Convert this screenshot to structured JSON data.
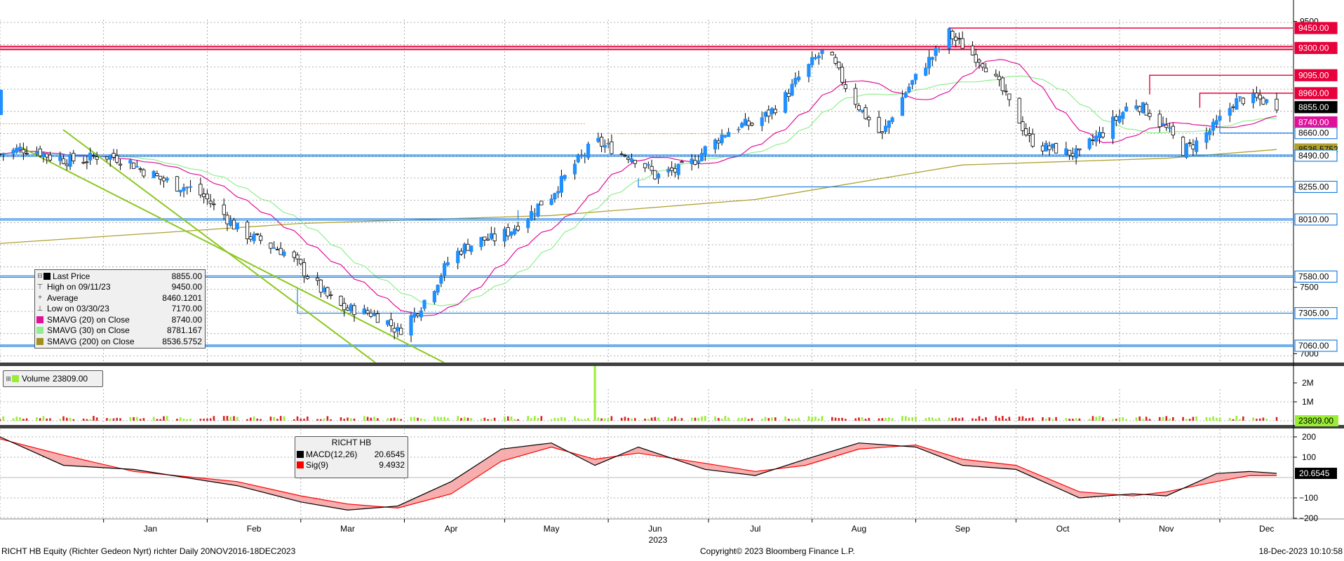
{
  "chart_data": [
    {
      "type": "candlestick",
      "name": "price",
      "y_axis_ticks": [
        9500,
        7500,
        7000
      ],
      "price_labels": [
        {
          "value": 9450,
          "text": "9450.00",
          "style": "red"
        },
        {
          "value": 9300,
          "text": "9300.00",
          "style": "red"
        },
        {
          "value": 9095,
          "text": "9095.00",
          "style": "red"
        },
        {
          "value": 8960,
          "text": "8960.00",
          "style": "red"
        },
        {
          "value": 8855,
          "text": "8855.00",
          "style": "black"
        },
        {
          "value": 8740,
          "text": "8740.00",
          "style": "magenta"
        },
        {
          "value": 8660,
          "text": "8660.00",
          "style": "blue"
        },
        {
          "value": 8536.5752,
          "text": "8536.5752",
          "style": "olive"
        },
        {
          "value": 8490,
          "text": "8490.00",
          "style": "blue"
        },
        {
          "value": 8255,
          "text": "8255.00",
          "style": "blue"
        },
        {
          "value": 8010,
          "text": "8010.00",
          "style": "blue"
        },
        {
          "value": 7580,
          "text": "7580.00",
          "style": "blue"
        },
        {
          "value": 7305,
          "text": "7305.00",
          "style": "blue"
        },
        {
          "value": 7060,
          "text": "7060.00",
          "style": "blue"
        }
      ],
      "legend": [
        {
          "symbol": "black-square",
          "label": "Last Price",
          "value": "8855.00"
        },
        {
          "symbol": "high",
          "label": "High on 09/11/23",
          "value": "9450.00"
        },
        {
          "symbol": "average",
          "label": "Average",
          "value": "8460.1201"
        },
        {
          "symbol": "low",
          "label": "Low on 03/30/23",
          "value": "7170.00"
        },
        {
          "symbol": "magenta-square",
          "label": "SMAVG (20)  on Close",
          "value": "8740.00"
        },
        {
          "symbol": "lightgreen-square",
          "label": "SMAVG (30)  on Close",
          "value": "8781.167"
        },
        {
          "symbol": "olive-square",
          "label": "SMAVG (200)  on Close",
          "value": "8536.5752"
        }
      ],
      "key_points": [
        {
          "date": "2022-12-20",
          "close": 8500
        },
        {
          "date": "2023-01-15",
          "close": 8400
        },
        {
          "date": "2023-02-15",
          "close": 7900
        },
        {
          "date": "2023-03-15",
          "close": 7350
        },
        {
          "date": "2023-03-30",
          "close": 7170
        },
        {
          "date": "2023-04-15",
          "close": 7700
        },
        {
          "date": "2023-05-15",
          "close": 8150
        },
        {
          "date": "2023-05-28",
          "close": 8650
        },
        {
          "date": "2023-06-15",
          "close": 8320
        },
        {
          "date": "2023-07-15",
          "close": 8750
        },
        {
          "date": "2023-08-05",
          "close": 9250
        },
        {
          "date": "2023-08-22",
          "close": 8650
        },
        {
          "date": "2023-09-11",
          "close": 9450
        },
        {
          "date": "2023-09-20",
          "close": 9200
        },
        {
          "date": "2023-10-05",
          "close": 8650
        },
        {
          "date": "2023-10-20",
          "close": 8450
        },
        {
          "date": "2023-11-05",
          "close": 8950
        },
        {
          "date": "2023-11-20",
          "close": 8500
        },
        {
          "date": "2023-12-05",
          "close": 8900
        },
        {
          "date": "2023-12-18",
          "close": 8855
        }
      ]
    },
    {
      "type": "bar",
      "name": "volume",
      "y_axis_ticks": [
        "2M",
        "1M"
      ],
      "legend_label": "Volume",
      "legend_value": "23809.00",
      "last_label": "23809.00",
      "spike": {
        "date": "2023-05-28",
        "value": 2900000
      }
    },
    {
      "type": "line",
      "name": "macd",
      "y_axis_ticks": [
        200,
        100,
        -100,
        -200
      ],
      "legend_title": "RICHT HB",
      "legend": [
        {
          "color": "#000000",
          "label": "MACD(12,26)",
          "value": "20.6545"
        },
        {
          "color": "#ff0000",
          "label": "Sig(9)",
          "value": "9.4932"
        }
      ],
      "last_label": "20.6545"
    }
  ],
  "x_axis": {
    "months": [
      "Jan",
      "Feb",
      "Mar",
      "Apr",
      "May",
      "Jun",
      "Jul",
      "Aug",
      "Sep",
      "Oct",
      "Nov",
      "Dec"
    ],
    "year": "2023"
  },
  "footer": {
    "left": "RICHT HB Equity (Richter Gedeon Nyrt) richter  Daily 20NOV2016-18DEC2023",
    "center": "Copyright© 2023 Bloomberg Finance L.P.",
    "right": "18-Dec-2023 10:10:58"
  },
  "colors": {
    "up": "#1e90ff",
    "down": "#000000",
    "resistance": "#e8003a",
    "support": "#1e7fe0",
    "sma20": "#e0109a",
    "sma30": "#90ee90",
    "sma200": "#b0a030",
    "trend": "#8cc820",
    "volume_up": "#99ee33",
    "volume_down": "#dd2222"
  }
}
